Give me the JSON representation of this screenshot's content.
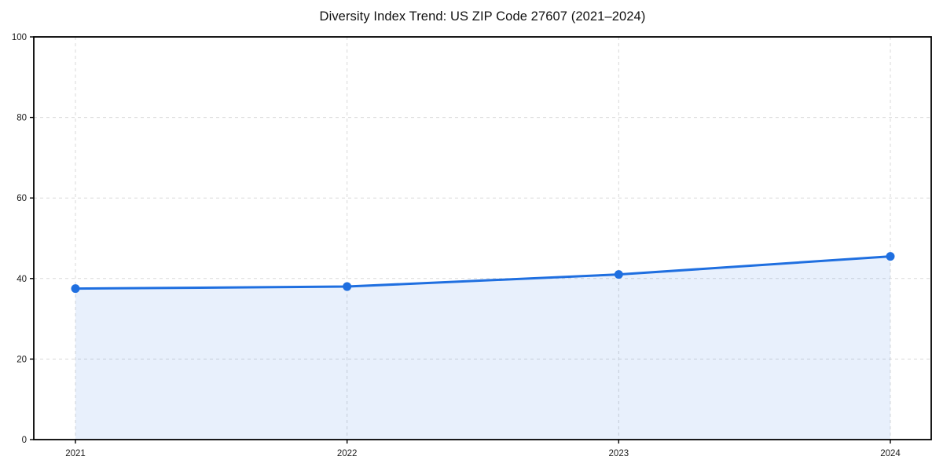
{
  "chart_data": {
    "type": "line",
    "title": "Diversity Index Trend: US ZIP Code 27607 (2021–2024)",
    "categories": [
      "2021",
      "2022",
      "2023",
      "2024"
    ],
    "series": [
      {
        "name": "Diversity Index",
        "values": [
          37.5,
          38,
          41,
          45.5
        ]
      }
    ],
    "xlabel": "",
    "ylabel": "",
    "ylim": [
      0,
      100
    ],
    "yticks": [
      0,
      20,
      40,
      60,
      80,
      100
    ],
    "grid": "dashed-both-axes",
    "legend_position": "none",
    "area_fill": true,
    "marker": "circle",
    "colors": {
      "line": "#1f6fe0",
      "marker": "#1f6fe0",
      "area": "#1f6fe0",
      "area_opacity": 0.1,
      "grid": "#d9d9d9",
      "axis": "#000000",
      "title_text": "#111111",
      "tick_text": "#1a1a1a",
      "background": "#ffffff"
    }
  }
}
